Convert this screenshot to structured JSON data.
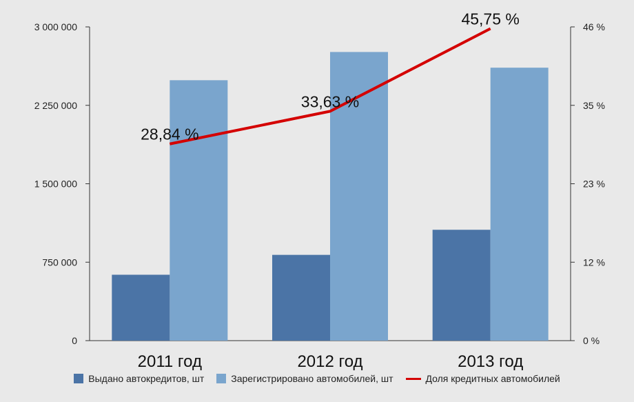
{
  "chart_data": {
    "type": "bar",
    "categories": [
      "2011 год",
      "2012 год",
      "2013 год"
    ],
    "series": [
      {
        "name": "Выдано автокредитов, шт",
        "kind": "bar",
        "axis": "left",
        "color": "#4b74a6",
        "values": [
          630000,
          820000,
          1060000
        ]
      },
      {
        "name": "Зарегистрировано автомобилей, шт",
        "kind": "bar",
        "axis": "left",
        "color": "#7aa5cd",
        "values": [
          2490000,
          2760000,
          2610000
        ]
      },
      {
        "name": "Доля кредитных автомобилей",
        "kind": "line",
        "axis": "right",
        "color": "#d40000",
        "values": [
          28.84,
          33.63,
          45.75
        ],
        "labels": [
          "28,84 %",
          "33,63 %",
          "45,75 %"
        ]
      }
    ],
    "left_axis": {
      "ylim": [
        0,
        3000000
      ],
      "ticks": [
        0,
        750000,
        1500000,
        2250000,
        3000000
      ],
      "tick_labels": [
        "0",
        "750 000",
        "1 500 000",
        "2 250 000",
        "3 000 000"
      ]
    },
    "right_axis": {
      "ylim": [
        0,
        46
      ],
      "ticks": [
        0,
        11.5,
        23,
        34.5,
        46
      ],
      "tick_labels": [
        "0 %",
        "12 %",
        "23 %",
        "35 %",
        "46 %"
      ]
    },
    "title": "",
    "xlabel": "",
    "ylabel": "",
    "grid": false,
    "legend_position": "bottom"
  }
}
